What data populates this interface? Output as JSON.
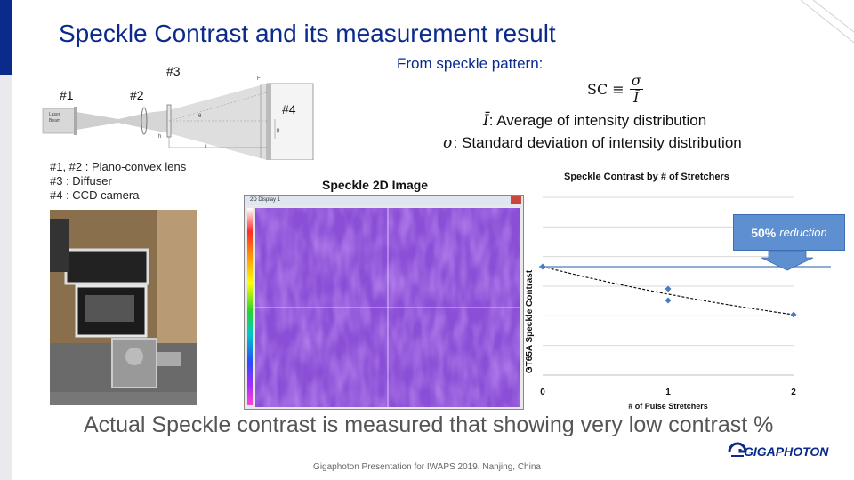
{
  "title": "Speckle Contrast and its measurement result",
  "formula": {
    "intro": "From speckle pattern:",
    "lhs": "SC ≡",
    "numerator": "σ",
    "denominator": "Ī",
    "def_mean_symbol": "Ī",
    "def_mean_text": ": Average of intensity distribution",
    "def_sigma_symbol": "σ",
    "def_sigma_text": ": Standard deviation of intensity distribution"
  },
  "setup": {
    "labels": [
      "#1",
      "#2",
      "#3",
      "#4"
    ],
    "laser_label_1": "Laser",
    "laser_label_2": "Beam",
    "dim_F": "F",
    "dim_h": "h",
    "dim_L": "L",
    "dim_p": "p",
    "dim_theta": "θ",
    "legend": [
      "#1, #2 : Plano-convex lens",
      "#3 : Diffuser",
      "#4 : CCD camera"
    ]
  },
  "speckle_image": {
    "title": "Speckle 2D Image",
    "window_title": "2D Display 1"
  },
  "chart_data": {
    "type": "scatter",
    "title": "Speckle Contrast by  # of Stretchers",
    "xlabel": "# of Pulse Stretchers",
    "ylabel": "GT65A Speckle Contrast",
    "x_ticks": [
      "0",
      "1",
      "2"
    ],
    "xlim": [
      0,
      2
    ],
    "ylim": [
      0,
      1
    ],
    "points": [
      {
        "x": 0,
        "y": 0.61
      },
      {
        "x": 1,
        "y": 0.485
      },
      {
        "x": 1,
        "y": 0.42
      },
      {
        "x": 2,
        "y": 0.34
      }
    ],
    "reference_y": 0.61,
    "trendline": "dashed",
    "grid": true,
    "marker_color": "#4a7ebb",
    "reference_color": "#4a7ebb",
    "callout": {
      "bold": "50%",
      "text": "reduction"
    }
  },
  "bottom_statement": "Actual Speckle contrast is measured that showing very low contrast %",
  "footer": "Gigaphoton Presentation for IWAPS 2019, Nanjing, China",
  "logo_text": "GIGAPHOTON",
  "colors": {
    "accent": "#0a2a8c",
    "callout": "#5e8fd1"
  }
}
